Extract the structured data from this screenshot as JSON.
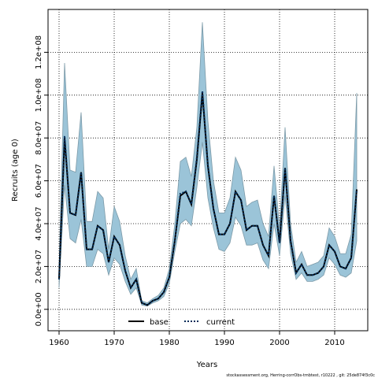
{
  "chart_data": {
    "type": "line",
    "xlabel": "Years",
    "ylabel": "Recruits (age 0)",
    "xlim": [
      1958,
      2016
    ],
    "ylim": [
      -10000000.0,
      140000000.0
    ],
    "x_ticks": [
      1960,
      1970,
      1980,
      1990,
      2000,
      2010
    ],
    "y_ticks": [
      0,
      20000000,
      40000000,
      60000000,
      80000000,
      100000000,
      120000000
    ],
    "y_tick_labels": [
      "0.0e+00",
      "2.0e+07",
      "4.0e+07",
      "6.0e+07",
      "8.0e+07",
      "1.0e+08",
      "1.2e+08"
    ],
    "grid": true,
    "grid_style": "dotted",
    "legend_position": "bottom-center",
    "band_color": "#9bc4d8",
    "band_edge_color": "#7c9aa8",
    "x": [
      1960,
      1961,
      1962,
      1963,
      1964,
      1965,
      1966,
      1967,
      1968,
      1969,
      1970,
      1971,
      1972,
      1973,
      1974,
      1975,
      1976,
      1977,
      1978,
      1979,
      1980,
      1981,
      1982,
      1983,
      1984,
      1985,
      1986,
      1987,
      1988,
      1989,
      1990,
      1991,
      1992,
      1993,
      1994,
      1995,
      1996,
      1997,
      1998,
      1999,
      2000,
      2001,
      2002,
      2003,
      2004,
      2005,
      2006,
      2007,
      2008,
      2009,
      2010,
      2011,
      2012,
      2013,
      2014
    ],
    "band_upper": [
      20000000,
      115000000,
      65000000,
      64000000,
      92000000,
      41000000,
      41000000,
      55000000,
      52000000,
      28000000,
      48000000,
      41000000,
      25000000,
      14000000,
      19000000,
      4000000,
      3000000,
      5000000,
      6500000,
      10000000,
      19000000,
      40000000,
      69000000,
      71000000,
      62000000,
      85000000,
      134000000,
      88000000,
      60000000,
      45000000,
      45000000,
      52000000,
      71000000,
      65000000,
      48000000,
      50000000,
      51000000,
      40000000,
      34000000,
      67000000,
      38000000,
      85000000,
      40000000,
      22000000,
      27000000,
      20000000,
      21000000,
      22000000,
      25000000,
      38000000,
      34000000,
      26000000,
      26000000,
      35000000,
      101000000
    ],
    "band_lower": [
      10000000,
      58000000,
      33000000,
      31000000,
      42000000,
      20000000,
      20000000,
      28000000,
      26000000,
      16000000,
      24000000,
      21000000,
      13000000,
      7000000,
      10000000,
      2000000,
      1500000,
      3000000,
      4000000,
      6000000,
      12000000,
      27000000,
      40000000,
      42000000,
      39000000,
      57000000,
      78000000,
      52000000,
      38000000,
      28000000,
      27000000,
      31000000,
      43000000,
      39000000,
      30000000,
      30000000,
      31000000,
      23000000,
      19000000,
      40000000,
      25000000,
      53000000,
      26000000,
      14000000,
      17000000,
      13000000,
      13000000,
      14000000,
      16000000,
      24000000,
      21000000,
      16000000,
      15000000,
      17000000,
      32000000
    ],
    "series": [
      {
        "name": "base",
        "values": [
          14000000,
          80000000,
          45000000,
          44000000,
          64000000,
          28000000,
          28000000,
          39000000,
          37000000,
          22000000,
          34000000,
          30000000,
          18000000,
          10000000,
          14000000,
          3000000,
          2000000,
          4000000,
          5000000,
          8000000,
          15000000,
          32000000,
          53000000,
          55000000,
          49000000,
          70000000,
          101000000,
          67000000,
          47000000,
          35000000,
          35000000,
          40000000,
          55000000,
          51000000,
          37000000,
          39000000,
          39000000,
          30000000,
          25000000,
          53000000,
          31000000,
          66000000,
          32000000,
          17000000,
          21000000,
          16000000,
          16000000,
          17000000,
          20000000,
          30000000,
          27000000,
          20000000,
          19000000,
          24000000,
          56000000
        ]
      },
      {
        "name": "current",
        "values": [
          14000000,
          81000000,
          45000000,
          44000000,
          64000000,
          28000000,
          28000000,
          39000000,
          37000000,
          22000000,
          34000000,
          30000000,
          18000000,
          10000000,
          14000000,
          3000000,
          2000000,
          4000000,
          5000000,
          8000000,
          15000000,
          32000000,
          54000000,
          55000000,
          49000000,
          71000000,
          102000000,
          67000000,
          47000000,
          35000000,
          35000000,
          40000000,
          55000000,
          51000000,
          37000000,
          39000000,
          39000000,
          30000000,
          25000000,
          53000000,
          31000000,
          66000000,
          32000000,
          17000000,
          21000000,
          16000000,
          16000000,
          17000000,
          20000000,
          30000000,
          27000000,
          20000000,
          19000000,
          24000000,
          56000000
        ]
      }
    ]
  },
  "footer": {
    "text": "stockassessment.org,  Herring-corrObs-tmbtest,  r10222  ,  git:  25de874f3c0c"
  }
}
